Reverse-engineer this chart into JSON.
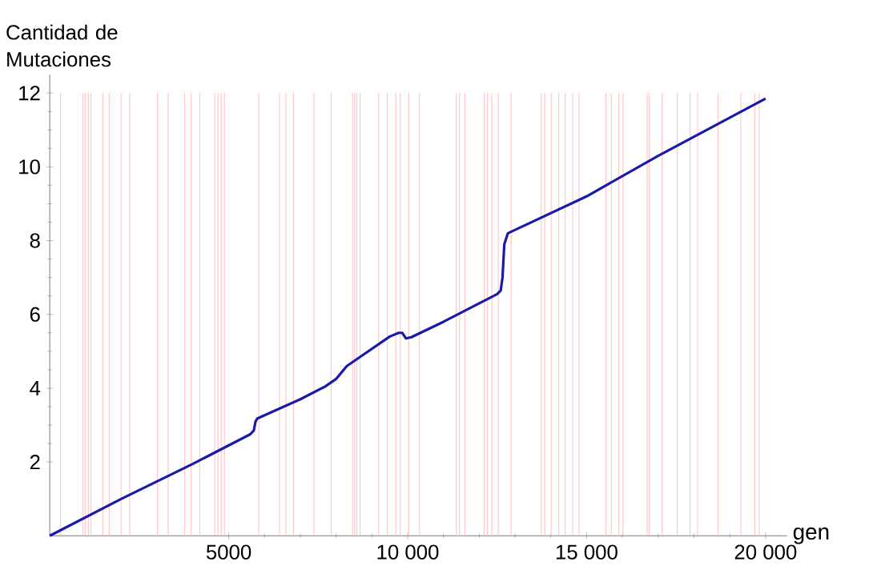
{
  "chart_data": {
    "type": "line",
    "xlabel": "gen",
    "ylabel": "Cantidad de Mutaciones",
    "xlim": [
      0,
      20600
    ],
    "ylim": [
      0,
      12.5
    ],
    "xticks": [
      5000,
      {
        "value": 10000,
        "label": "10 000"
      },
      {
        "value": 15000,
        "label": "15 000"
      },
      {
        "value": 20000,
        "label": "20 000"
      }
    ],
    "yticks": [
      2,
      4,
      6,
      8,
      10,
      12
    ],
    "grid": false,
    "marker": "none",
    "line_style": "solid",
    "series": [
      {
        "color": "#1a1aa8",
        "x": [
          0,
          2000,
          4000,
          5600,
          5700,
          5750,
          5800,
          7000,
          7700,
          8000,
          8300,
          8600,
          9500,
          9750,
          9850,
          9950,
          10100,
          11000,
          12000,
          12500,
          12600,
          12650,
          12700,
          12800,
          15000,
          17000,
          20000
        ],
        "values": [
          0,
          1.0,
          1.95,
          2.75,
          2.85,
          3.1,
          3.18,
          3.7,
          4.05,
          4.25,
          4.6,
          4.8,
          5.4,
          5.5,
          5.5,
          5.35,
          5.38,
          5.8,
          6.3,
          6.55,
          6.65,
          7.0,
          7.9,
          8.2,
          9.2,
          10.3,
          11.85
        ]
      }
    ],
    "ref_lines": [
      {
        "axis": "x",
        "value": 300,
        "color": "#ffc8c8"
      },
      {
        "axis": "x",
        "value": 930,
        "color": "#ffc8c8"
      },
      {
        "axis": "x",
        "value": 990,
        "color": "#ffc8c8"
      },
      {
        "axis": "x",
        "value": 1080,
        "color": "#ffc8c8"
      },
      {
        "axis": "x",
        "value": 1150,
        "color": "#ffc8c8"
      },
      {
        "axis": "x",
        "value": 1480,
        "color": "#ffc8c8"
      },
      {
        "axis": "x",
        "value": 1660,
        "color": "#ffc8c8"
      },
      {
        "axis": "x",
        "value": 1990,
        "color": "#ffc8c8"
      },
      {
        "axis": "x",
        "value": 2230,
        "color": "#ffc8c8"
      },
      {
        "axis": "x",
        "value": 3010,
        "color": "#ffc8c8"
      },
      {
        "axis": "x",
        "value": 3310,
        "color": "#ffc8c8"
      },
      {
        "axis": "x",
        "value": 3770,
        "color": "#ffc8c8"
      },
      {
        "axis": "x",
        "value": 3950,
        "color": "#ffc8c8"
      },
      {
        "axis": "x",
        "value": 4190,
        "color": "#ffc8c8"
      },
      {
        "axis": "x",
        "value": 4610,
        "color": "#ffc8c8"
      },
      {
        "axis": "x",
        "value": 4700,
        "color": "#ffc8c8"
      },
      {
        "axis": "x",
        "value": 4790,
        "color": "#ffc8c8"
      },
      {
        "axis": "x",
        "value": 4880,
        "color": "#ffc8c8"
      },
      {
        "axis": "x",
        "value": 5840,
        "color": "#ffc8c8"
      },
      {
        "axis": "x",
        "value": 6420,
        "color": "#ffc8c8"
      },
      {
        "axis": "x",
        "value": 6600,
        "color": "#ffc8c8"
      },
      {
        "axis": "x",
        "value": 6810,
        "color": "#ffc8c8"
      },
      {
        "axis": "x",
        "value": 7380,
        "color": "#ffc8c8"
      },
      {
        "axis": "x",
        "value": 7860,
        "color": "#ffc8c8"
      },
      {
        "axis": "x",
        "value": 8460,
        "color": "#ffc8c8"
      },
      {
        "axis": "x",
        "value": 8520,
        "color": "#ffc8c8"
      },
      {
        "axis": "x",
        "value": 8580,
        "color": "#ffc8c8"
      },
      {
        "axis": "x",
        "value": 8670,
        "color": "#ffc8c8"
      },
      {
        "axis": "x",
        "value": 9190,
        "color": "#ffc8c8"
      },
      {
        "axis": "x",
        "value": 9430,
        "color": "#ffc8c8"
      },
      {
        "axis": "x",
        "value": 9670,
        "color": "#ffc8c8"
      },
      {
        "axis": "x",
        "value": 9790,
        "color": "#ffc8c8"
      },
      {
        "axis": "x",
        "value": 10030,
        "color": "#ffc8c8"
      },
      {
        "axis": "x",
        "value": 10330,
        "color": "#ffc8c8"
      },
      {
        "axis": "x",
        "value": 11360,
        "color": "#ffc8c8"
      },
      {
        "axis": "x",
        "value": 11450,
        "color": "#ffc8c8"
      },
      {
        "axis": "x",
        "value": 11600,
        "color": "#ffc8c8"
      },
      {
        "axis": "x",
        "value": 12140,
        "color": "#ffc8c8"
      },
      {
        "axis": "x",
        "value": 12230,
        "color": "#ffc8c8"
      },
      {
        "axis": "x",
        "value": 12350,
        "color": "#ffc8c8"
      },
      {
        "axis": "x",
        "value": 12530,
        "color": "#ffc8c8"
      },
      {
        "axis": "x",
        "value": 12890,
        "color": "#ffc8c8"
      },
      {
        "axis": "x",
        "value": 13730,
        "color": "#ffc8c8"
      },
      {
        "axis": "x",
        "value": 13830,
        "color": "#ffc8c8"
      },
      {
        "axis": "x",
        "value": 14010,
        "color": "#ffc8c8"
      },
      {
        "axis": "x",
        "value": 14220,
        "color": "#ffc8c8"
      },
      {
        "axis": "x",
        "value": 14400,
        "color": "#ffc8c8"
      },
      {
        "axis": "x",
        "value": 14610,
        "color": "#ffc8c8"
      },
      {
        "axis": "x",
        "value": 14790,
        "color": "#ffc8c8"
      },
      {
        "axis": "x",
        "value": 15540,
        "color": "#ffc8c8"
      },
      {
        "axis": "x",
        "value": 15690,
        "color": "#ffc8c8"
      },
      {
        "axis": "x",
        "value": 15900,
        "color": "#ffc8c8"
      },
      {
        "axis": "x",
        "value": 16020,
        "color": "#ffc8c8"
      },
      {
        "axis": "x",
        "value": 16690,
        "color": "#ffc8c8"
      },
      {
        "axis": "x",
        "value": 16750,
        "color": "#ffc8c8"
      },
      {
        "axis": "x",
        "value": 17110,
        "color": "#ffc8c8"
      },
      {
        "axis": "x",
        "value": 17530,
        "color": "#ffc8c8"
      },
      {
        "axis": "x",
        "value": 17890,
        "color": "#ffc8c8"
      },
      {
        "axis": "x",
        "value": 18100,
        "color": "#ffc8c8"
      },
      {
        "axis": "x",
        "value": 18670,
        "color": "#ffc8c8"
      },
      {
        "axis": "x",
        "value": 19310,
        "color": "#ffc8c8"
      },
      {
        "axis": "x",
        "value": 19700,
        "color": "#ffc8c8"
      },
      {
        "axis": "x",
        "value": 19820,
        "color": "#ffc8c8"
      }
    ]
  }
}
